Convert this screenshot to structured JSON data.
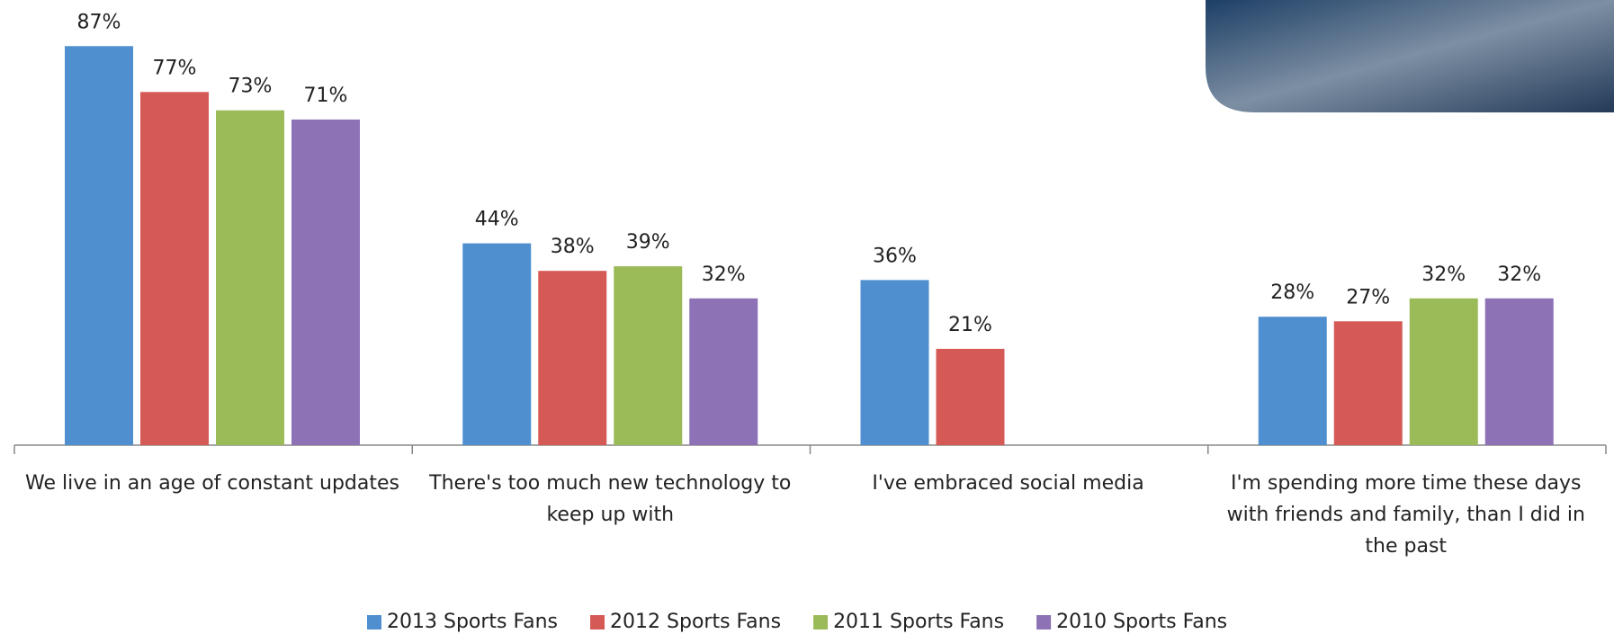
{
  "chart_data": {
    "type": "bar",
    "categories": [
      "We live in an age of constant updates",
      "There's too much new technology to keep up with",
      "I've embraced social media",
      "I'm spending more time these days with friends and family, than I did in the past"
    ],
    "series": [
      {
        "name": "2013 Sports Fans",
        "color": "#4f8fd0",
        "values": [
          87,
          44,
          36,
          28
        ],
        "value_labels": [
          "87%",
          "44%",
          "36%",
          "28%"
        ]
      },
      {
        "name": "2012 Sports Fans",
        "color": "#d55a55",
        "values": [
          77,
          38,
          21,
          27
        ],
        "value_labels": [
          "77%",
          "38%",
          "21%",
          "27%"
        ]
      },
      {
        "name": "2011 Sports Fans",
        "color": "#9bbb59",
        "values": [
          73,
          39,
          null,
          32
        ],
        "value_labels": [
          "73%",
          "39%",
          null,
          "32%"
        ]
      },
      {
        "name": "2010 Sports Fans",
        "color": "#8d72b6",
        "values": [
          71,
          32,
          null,
          32
        ],
        "value_labels": [
          "71%",
          "32%",
          null,
          "32%"
        ]
      }
    ]
  }
}
